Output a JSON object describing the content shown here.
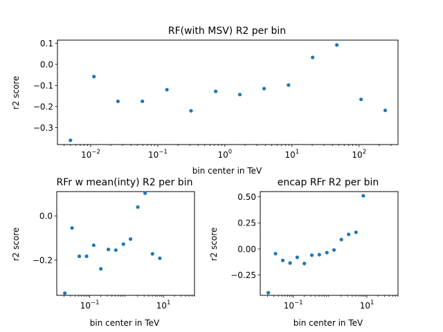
{
  "chart_data": [
    {
      "type": "scatter",
      "title": "RF(with MSV) R2 per bin",
      "xlabel": "bin center in TeV",
      "ylabel": "r2 score",
      "xscale": "log",
      "xlim": [
        0.0032,
        380
      ],
      "ylim": [
        -0.38,
        0.115
      ],
      "xticks": [
        {
          "v": 0.01,
          "m": "10",
          "e": "−2"
        },
        {
          "v": 0.1,
          "m": "10",
          "e": "−1"
        },
        {
          "v": 1,
          "m": "10",
          "e": "0"
        },
        {
          "v": 10,
          "m": "10",
          "e": "1"
        },
        {
          "v": 100,
          "m": "10",
          "e": "2"
        }
      ],
      "yticks": [
        {
          "v": 0.1,
          "label": "0.1"
        },
        {
          "v": 0.0,
          "label": "0.0"
        },
        {
          "v": -0.1,
          "label": "−0.1"
        },
        {
          "v": -0.2,
          "label": "−0.2"
        },
        {
          "v": -0.3,
          "label": "−0.3"
        }
      ],
      "grid": false,
      "points": [
        {
          "x": 0.005,
          "y": -0.36
        },
        {
          "x": 0.0112,
          "y": -0.058
        },
        {
          "x": 0.0255,
          "y": -0.175
        },
        {
          "x": 0.059,
          "y": -0.175
        },
        {
          "x": 0.137,
          "y": -0.12
        },
        {
          "x": 0.313,
          "y": -0.22
        },
        {
          "x": 0.73,
          "y": -0.128
        },
        {
          "x": 1.67,
          "y": -0.143
        },
        {
          "x": 3.84,
          "y": -0.115
        },
        {
          "x": 8.87,
          "y": -0.098
        },
        {
          "x": 20.3,
          "y": 0.033
        },
        {
          "x": 46.6,
          "y": 0.092
        },
        {
          "x": 107,
          "y": -0.166
        },
        {
          "x": 245,
          "y": -0.218
        }
      ]
    },
    {
      "type": "scatter",
      "title": "RFr w mean(inty) R2 per bin",
      "xlabel": "bin center in TeV",
      "ylabel": "r2 score",
      "xscale": "log",
      "xlim": [
        0.0127,
        70
      ],
      "ylim": [
        -0.36,
        0.11
      ],
      "xticks": [
        {
          "v": 0.1,
          "m": "10",
          "e": "−1"
        },
        {
          "v": 10,
          "m": "10",
          "e": "1"
        }
      ],
      "yticks": [
        {
          "v": 0.0,
          "label": "0.0"
        },
        {
          "v": -0.2,
          "label": "−0.2"
        }
      ],
      "grid": false,
      "points": [
        {
          "x": 0.021,
          "y": -0.35
        },
        {
          "x": 0.033,
          "y": -0.055
        },
        {
          "x": 0.052,
          "y": -0.183
        },
        {
          "x": 0.082,
          "y": -0.183
        },
        {
          "x": 0.128,
          "y": -0.133
        },
        {
          "x": 0.2,
          "y": -0.24
        },
        {
          "x": 0.32,
          "y": -0.152
        },
        {
          "x": 0.51,
          "y": -0.155
        },
        {
          "x": 0.82,
          "y": -0.128
        },
        {
          "x": 1.28,
          "y": -0.105
        },
        {
          "x": 2.02,
          "y": 0.04
        },
        {
          "x": 3.19,
          "y": 0.103
        },
        {
          "x": 5.05,
          "y": -0.172
        },
        {
          "x": 8.0,
          "y": -0.192
        }
      ]
    },
    {
      "type": "scatter",
      "title": "encap RFr R2 per bin",
      "xlabel": "bin center in TeV",
      "ylabel": "r2 score",
      "xscale": "log",
      "xlim": [
        0.0127,
        70
      ],
      "ylim": [
        -0.445,
        0.55
      ],
      "xticks": [
        {
          "v": 0.1,
          "m": "10",
          "e": "−1"
        },
        {
          "v": 10,
          "m": "10",
          "e": "1"
        }
      ],
      "yticks": [
        {
          "v": 0.5,
          "label": "0.50"
        },
        {
          "v": 0.25,
          "label": "0.25"
        },
        {
          "v": 0.0,
          "label": "0.00"
        },
        {
          "v": -0.25,
          "label": "−0.25"
        }
      ],
      "grid": false,
      "points": [
        {
          "x": 0.021,
          "y": -0.42
        },
        {
          "x": 0.033,
          "y": -0.045
        },
        {
          "x": 0.052,
          "y": -0.11
        },
        {
          "x": 0.082,
          "y": -0.135
        },
        {
          "x": 0.128,
          "y": -0.08
        },
        {
          "x": 0.2,
          "y": -0.14
        },
        {
          "x": 0.32,
          "y": -0.06
        },
        {
          "x": 0.51,
          "y": -0.055
        },
        {
          "x": 0.82,
          "y": -0.035
        },
        {
          "x": 1.28,
          "y": -0.01
        },
        {
          "x": 2.02,
          "y": 0.09
        },
        {
          "x": 3.19,
          "y": 0.14
        },
        {
          "x": 5.05,
          "y": 0.16
        },
        {
          "x": 8.0,
          "y": 0.51
        }
      ]
    }
  ]
}
